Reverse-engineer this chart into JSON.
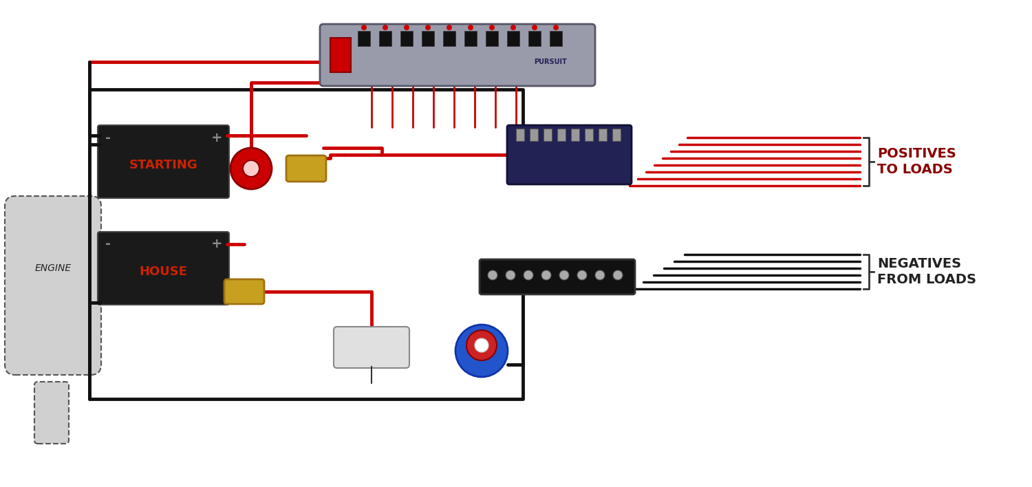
{
  "bg_color": "#ffffff",
  "red_wire": "#cc0000",
  "black_wire": "#111111",
  "dark_red_text": "#8b0000",
  "label_color": "#333333",
  "engine_color": "#d0d0d0",
  "engine_border": "#555555",
  "battery_body": "#1a1a1a",
  "battery_label_starting": "#cc2200",
  "battery_label_house": "#cc2200",
  "switch_color": "#cc0000",
  "fuse_color": "#c8a020",
  "bus_bar_color": "#222244",
  "panel_color": "#888899",
  "pump_body_blue": "#2255cc",
  "pump_body_red": "#cc2222",
  "pump_body_white": "#eeeeee",
  "bilge_body": "#eeeeee",
  "positives_text": "POSITIVES\nTO LOADS",
  "negatives_text": "NEGATIVES\nFROM LOADS",
  "engine_text": "ENGINE",
  "starting_text": "STARTING",
  "house_text": "HOUSE",
  "plus_text": "+",
  "minus_text": "-",
  "fig_width": 15.0,
  "fig_height": 7.08,
  "dpi": 100
}
